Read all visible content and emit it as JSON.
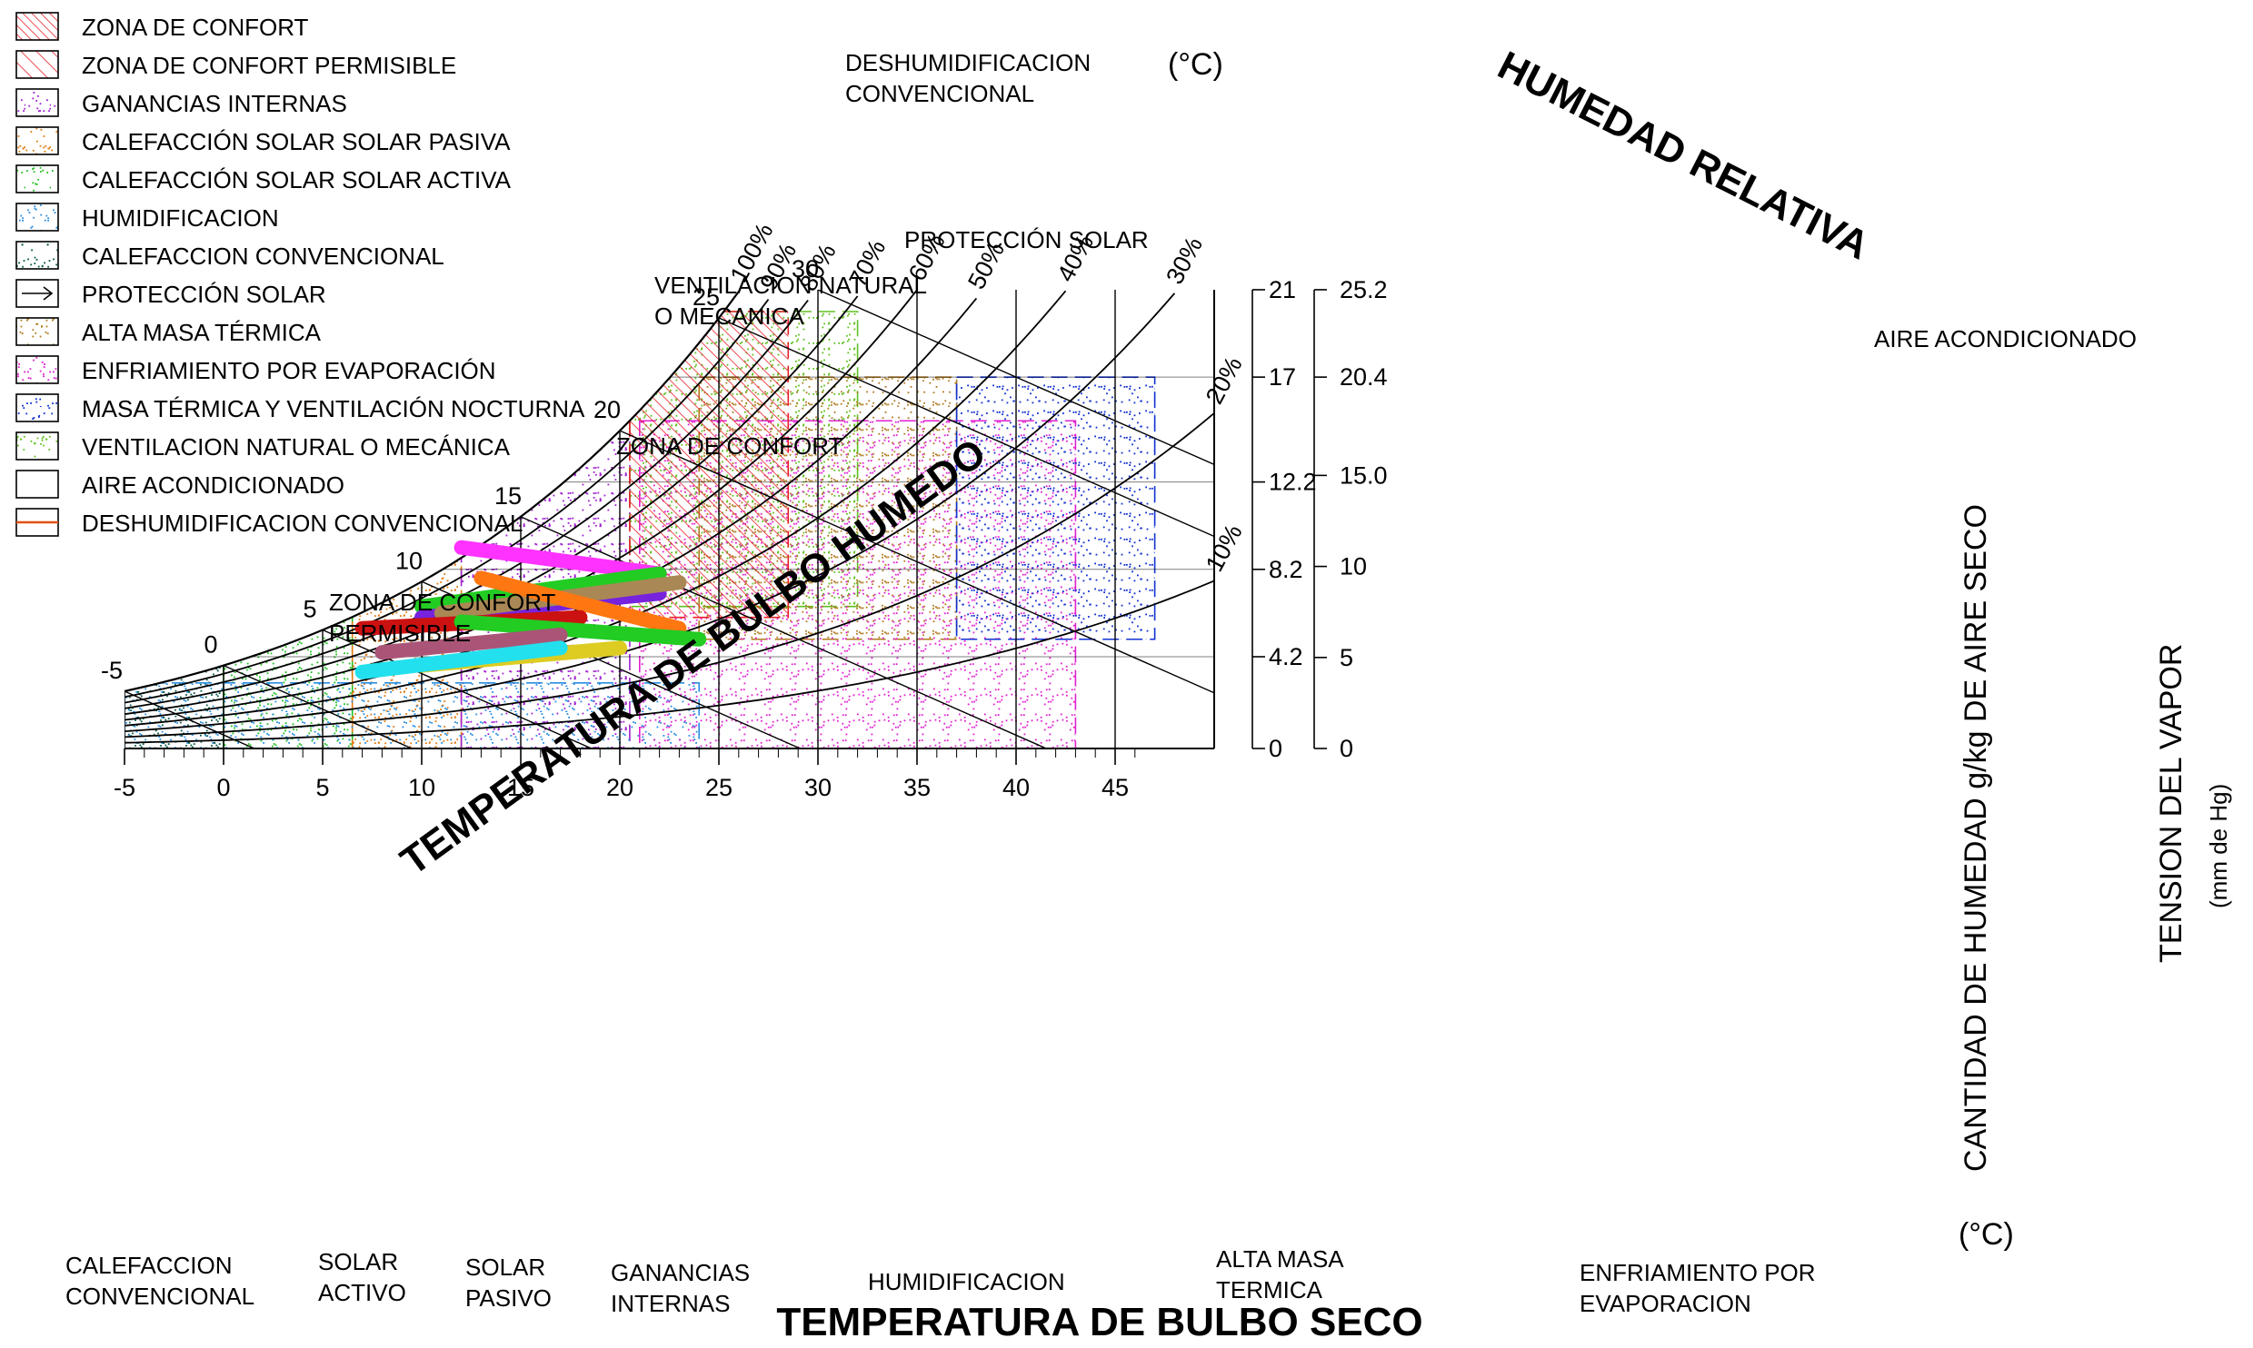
{
  "chart_data": {
    "type": "psychrometric",
    "xlabel": "TEMPERATURA DE BULBO SECO",
    "wetbulb_label": "TEMPERATURA DE BULBO HUMEDO",
    "rh_title": "HUMEDAD RELATIVA",
    "y1label": "CANTIDAD DE HUMEDAD g/kg DE AIRE SECO",
    "y2label_line1": "TENSION DEL VAPOR",
    "y2label_line2": "(mm de Hg)",
    "unit_top": "(°C)",
    "unit_bottom": "(°C)",
    "xlim": [
      -5,
      50
    ],
    "x_ticks": [
      "-5",
      "0",
      "5",
      "10",
      "15",
      "20",
      "25",
      "30",
      "35",
      "40",
      "45"
    ],
    "x_tick_values": [
      -5,
      0,
      5,
      10,
      15,
      20,
      25,
      30,
      35,
      40,
      45
    ],
    "y1_ticks": [
      "0",
      "4.2",
      "8.2",
      "12.2",
      "17",
      "21"
    ],
    "y1_values": [
      0,
      4.2,
      8.2,
      12.2,
      17,
      21
    ],
    "y2_ticks": [
      "0",
      "5",
      "10",
      "15.0",
      "20.4",
      "25.2"
    ],
    "y2_values": [
      0,
      5,
      10,
      15.0,
      20.4,
      25.2
    ],
    "rh_curves": [
      {
        "label": "10%",
        "rh": 10
      },
      {
        "label": "20%",
        "rh": 20
      },
      {
        "label": "30%",
        "rh": 30
      },
      {
        "label": "40%",
        "rh": 40
      },
      {
        "label": "50%",
        "rh": 50
      },
      {
        "label": "60%",
        "rh": 60
      },
      {
        "label": "70%",
        "rh": 70
      },
      {
        "label": "80%",
        "rh": 80
      },
      {
        "label": "90%",
        "rh": 90
      },
      {
        "label": "100%",
        "rh": 100
      }
    ],
    "wetbulb_ticks": [
      "-5",
      "0",
      "5",
      "10",
      "15",
      "20",
      "25",
      "30"
    ],
    "wetbulb_values": [
      -5,
      0,
      5,
      10,
      15,
      20,
      25,
      30
    ],
    "legend": [
      {
        "label": "ZONA DE CONFORT",
        "color": "#e8202a",
        "pattern": "hatch-dense"
      },
      {
        "label": "ZONA DE CONFORT PERMISIBLE",
        "color": "#e8202a",
        "pattern": "hatch"
      },
      {
        "label": "GANANCIAS INTERNAS",
        "color": "#a020d0",
        "pattern": "dots"
      },
      {
        "label": "CALEFACCIÓN SOLAR SOLAR PASIVA",
        "color": "#e07a10",
        "pattern": "dots"
      },
      {
        "label": "CALEFACCIÓN SOLAR SOLAR ACTIVA",
        "color": "#22c022",
        "pattern": "dots"
      },
      {
        "label": "HUMIDIFICACION",
        "color": "#2a8ee0",
        "pattern": "dots"
      },
      {
        "label": "CALEFACCION CONVENCIONAL",
        "color": "#0a5a4a",
        "pattern": "dots"
      },
      {
        "label": "PROTECCIÓN SOLAR",
        "color": "#000000",
        "pattern": "arrow"
      },
      {
        "label": "ALTA MASA TÉRMICA",
        "color": "#b07a20",
        "pattern": "dots"
      },
      {
        "label": "ENFRIAMIENTO POR EVAPORACIÓN",
        "color": "#e020d0",
        "pattern": "dots"
      },
      {
        "label": "MASA TÉRMICA Y VENTILACIÓN NOCTURNA",
        "color": "#1030d0",
        "pattern": "dots"
      },
      {
        "label": "VENTILACION NATURAL O MECÁNICA",
        "color": "#60c020",
        "pattern": "dots"
      },
      {
        "label": "AIRE ACONDICIONADO",
        "color": "#000000",
        "pattern": "empty"
      },
      {
        "label": "DESHUMIDIFICACION CONVENCIONAL",
        "color": "#e05010",
        "pattern": "line"
      }
    ],
    "annotations": {
      "deshum_l1": "DESHUMIDIFICACION",
      "deshum_l2": "CONVENCIONAL",
      "proteccion": "PROTECCIÓN SOLAR",
      "vent_l1": "VENTILACION NATURAL",
      "vent_l2": "O MECANICA",
      "confort": "ZONA DE CONFORT",
      "perm_l1": "ZONA DE CONFORT",
      "perm_l2": "PERMISIBLE",
      "aire": "AIRE ACONDICIONADO",
      "calef_l1": "CALEFACCION",
      "calef_l2": "CONVENCIONAL",
      "solact_l1": "SOLAR",
      "solact_l2": "ACTIVO",
      "solpas_l1": "SOLAR",
      "solpas_l2": "PASIVO",
      "gan_l1": "GANANCIAS",
      "gan_l2": "INTERNAS",
      "humid": "HUMIDIFICACION",
      "masa_l1": "ALTA MASA",
      "masa_l2": "TERMICA",
      "evap_l1": "ENFRIAMIENTO POR",
      "evap_l2": "EVAPORACION"
    },
    "zones": [
      {
        "name": "calefaccion-convencional",
        "color": "#0a5a4a",
        "t": [
          -5,
          0
        ],
        "w": [
          0,
          6
        ]
      },
      {
        "name": "solar-activo",
        "color": "#22c022",
        "t": [
          0,
          6.5
        ],
        "w": [
          0,
          9
        ]
      },
      {
        "name": "solar-pasivo",
        "color": "#e07a10",
        "t": [
          6.5,
          12
        ],
        "w": [
          0,
          12
        ]
      },
      {
        "name": "ganancias-internas",
        "color": "#a020d0",
        "t": [
          12,
          20.5
        ],
        "w": [
          0,
          15
        ]
      },
      {
        "name": "humidificacion",
        "color": "#2a8ee0",
        "t": [
          -5,
          24
        ],
        "w": [
          0,
          3
        ]
      },
      {
        "name": "ventilacion",
        "color": "#60c020",
        "t": [
          20.5,
          32
        ],
        "w": [
          6.5,
          20
        ]
      },
      {
        "name": "alta-masa",
        "color": "#b07a20",
        "t": [
          24,
          37
        ],
        "w": [
          5,
          17
        ]
      },
      {
        "name": "enfriamiento-evap",
        "color": "#e020d0",
        "t": [
          21,
          43
        ],
        "w": [
          0,
          15
        ]
      },
      {
        "name": "masa-ventilacion",
        "color": "#1030d0",
        "t": [
          37,
          47
        ],
        "w": [
          5,
          17
        ]
      },
      {
        "name": "zona-confort",
        "color": "#e8202a",
        "t": [
          20.5,
          28.5
        ],
        "w": [
          6,
          20
        ]
      }
    ],
    "monthly_lines": [
      {
        "color": "#ff33ff",
        "t": [
          12,
          22
        ],
        "w": [
          9.2,
          8.0
        ]
      },
      {
        "color": "#22cc22",
        "t": [
          10,
          22
        ],
        "w": [
          6.5,
          8.0
        ]
      },
      {
        "color": "#7722dd",
        "t": [
          10,
          22
        ],
        "w": [
          6.0,
          7.1
        ]
      },
      {
        "color": "#aa8855",
        "t": [
          11,
          23
        ],
        "w": [
          6.2,
          7.6
        ]
      },
      {
        "color": "#ff7711",
        "t": [
          13,
          23
        ],
        "w": [
          7.8,
          5.5
        ]
      },
      {
        "color": "#cc1111",
        "t": [
          7,
          18
        ],
        "w": [
          5.5,
          6.0
        ]
      },
      {
        "color": "#22cc22",
        "t": [
          12,
          24
        ],
        "w": [
          5.8,
          5.0
        ]
      },
      {
        "color": "#aa5577",
        "t": [
          8,
          17
        ],
        "w": [
          4.4,
          5.2
        ]
      },
      {
        "color": "#ddcc22",
        "t": [
          10,
          20
        ],
        "w": [
          3.8,
          4.6
        ]
      },
      {
        "color": "#22e0ee",
        "t": [
          7,
          17
        ],
        "w": [
          3.5,
          4.6
        ]
      }
    ]
  }
}
